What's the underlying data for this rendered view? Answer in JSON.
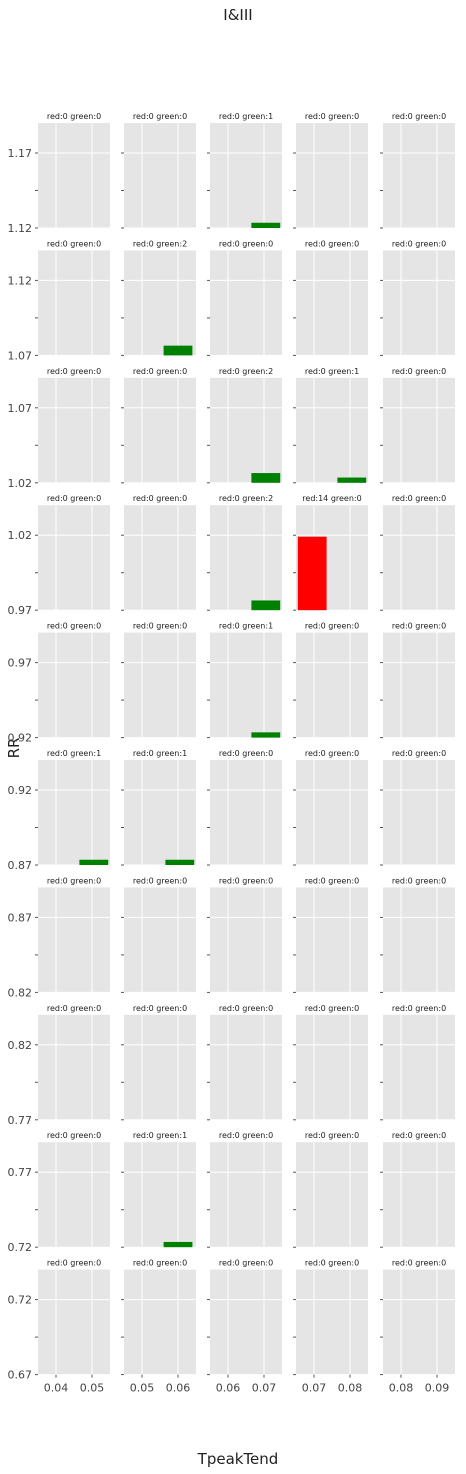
{
  "chart_data": {
    "type": "bar",
    "title": "I&III",
    "xlabel": "TpeakTend",
    "ylabel": "RR",
    "colors": {
      "red": "#ff0000",
      "green": "#008000",
      "panel_bg": "#e5e5e5",
      "grid": "#ffffff"
    },
    "grid": true,
    "columns": [
      {
        "x_range": [
          0.035,
          0.055
        ],
        "x_ticks": [
          "0.04",
          "0.05"
        ]
      },
      {
        "x_range": [
          0.045,
          0.065
        ],
        "x_ticks": [
          "0.05",
          "0.06"
        ]
      },
      {
        "x_range": [
          0.055,
          0.075
        ],
        "x_ticks": [
          "0.06",
          "0.07"
        ]
      },
      {
        "x_range": [
          0.065,
          0.085
        ],
        "x_ticks": [
          "0.07",
          "0.08"
        ]
      },
      {
        "x_range": [
          0.075,
          0.095
        ],
        "x_ticks": [
          "0.08",
          "0.09"
        ]
      }
    ],
    "rows": [
      {
        "y_range": [
          1.12,
          1.19
        ],
        "y_ticks": [
          "1.12",
          "1.17"
        ],
        "panels": [
          {
            "title": "red:0 green:0",
            "bars": []
          },
          {
            "title": "red:0 green:0",
            "bars": []
          },
          {
            "title": "red:0 green:1",
            "bars": [
              {
                "color": "green",
                "x": [
                  0.0665,
                  0.0745
                ],
                "y": [
                  1.12,
                  1.1235
                ]
              }
            ]
          },
          {
            "title": "red:0 green:0",
            "bars": []
          },
          {
            "title": "red:0 green:0",
            "bars": []
          }
        ]
      },
      {
        "y_range": [
          1.07,
          1.14
        ],
        "y_ticks": [
          "1.07",
          "1.12"
        ],
        "panels": [
          {
            "title": "red:0 green:0",
            "bars": []
          },
          {
            "title": "red:0 green:2",
            "bars": [
              {
                "color": "green",
                "x": [
                  0.056,
                  0.064
                ],
                "y": [
                  1.07,
                  1.0765
                ]
              }
            ]
          },
          {
            "title": "red:0 green:0",
            "bars": []
          },
          {
            "title": "red:0 green:0",
            "bars": []
          },
          {
            "title": "red:0 green:0",
            "bars": []
          }
        ]
      },
      {
        "y_range": [
          1.02,
          1.09
        ],
        "y_ticks": [
          "1.02",
          "1.07"
        ],
        "panels": [
          {
            "title": "red:0 green:0",
            "bars": []
          },
          {
            "title": "red:0 green:0",
            "bars": []
          },
          {
            "title": "red:0 green:2",
            "bars": [
              {
                "color": "green",
                "x": [
                  0.0665,
                  0.0745
                ],
                "y": [
                  1.02,
                  1.0265
                ]
              }
            ]
          },
          {
            "title": "red:0 green:1",
            "bars": [
              {
                "color": "green",
                "x": [
                  0.0765,
                  0.0845
                ],
                "y": [
                  1.02,
                  1.0235
                ]
              }
            ]
          },
          {
            "title": "red:0 green:0",
            "bars": []
          }
        ]
      },
      {
        "y_range": [
          0.97,
          1.04
        ],
        "y_ticks": [
          "0.97",
          "1.02"
        ],
        "panels": [
          {
            "title": "red:0 green:0",
            "bars": []
          },
          {
            "title": "red:0 green:0",
            "bars": []
          },
          {
            "title": "red:0 green:2",
            "bars": [
              {
                "color": "green",
                "x": [
                  0.0665,
                  0.0745
                ],
                "y": [
                  0.97,
                  0.9765
                ]
              }
            ]
          },
          {
            "title": "red:14 green:0",
            "bars": [
              {
                "color": "red",
                "x": [
                  0.0655,
                  0.0735
                ],
                "y": [
                  0.97,
                  1.019
                ]
              }
            ]
          },
          {
            "title": "red:0 green:0",
            "bars": []
          }
        ]
      },
      {
        "y_range": [
          0.92,
          0.99
        ],
        "y_ticks": [
          "0.92",
          "0.97"
        ],
        "panels": [
          {
            "title": "red:0 green:0",
            "bars": []
          },
          {
            "title": "red:0 green:0",
            "bars": []
          },
          {
            "title": "red:0 green:1",
            "bars": [
              {
                "color": "green",
                "x": [
                  0.0665,
                  0.0745
                ],
                "y": [
                  0.92,
                  0.9235
                ]
              }
            ]
          },
          {
            "title": "red:0 green:0",
            "bars": []
          },
          {
            "title": "red:0 green:0",
            "bars": []
          }
        ]
      },
      {
        "y_range": [
          0.87,
          0.94
        ],
        "y_ticks": [
          "0.87",
          "0.92"
        ],
        "panels": [
          {
            "title": "red:0 green:1",
            "bars": [
              {
                "color": "green",
                "x": [
                  0.0465,
                  0.0545
                ],
                "y": [
                  0.87,
                  0.8735
                ]
              }
            ]
          },
          {
            "title": "red:0 green:1",
            "bars": [
              {
                "color": "green",
                "x": [
                  0.0565,
                  0.0645
                ],
                "y": [
                  0.87,
                  0.8735
                ]
              }
            ]
          },
          {
            "title": "red:0 green:0",
            "bars": []
          },
          {
            "title": "red:0 green:0",
            "bars": []
          },
          {
            "title": "red:0 green:0",
            "bars": []
          }
        ]
      },
      {
        "y_range": [
          0.82,
          0.89
        ],
        "y_ticks": [
          "0.82",
          "0.87"
        ],
        "panels": [
          {
            "title": "red:0 green:0",
            "bars": []
          },
          {
            "title": "red:0 green:0",
            "bars": []
          },
          {
            "title": "red:0 green:0",
            "bars": []
          },
          {
            "title": "red:0 green:0",
            "bars": []
          },
          {
            "title": "red:0 green:0",
            "bars": []
          }
        ]
      },
      {
        "y_range": [
          0.77,
          0.84
        ],
        "y_ticks": [
          "0.77",
          "0.82"
        ],
        "panels": [
          {
            "title": "red:0 green:0",
            "bars": []
          },
          {
            "title": "red:0 green:0",
            "bars": []
          },
          {
            "title": "red:0 green:0",
            "bars": []
          },
          {
            "title": "red:0 green:0",
            "bars": []
          },
          {
            "title": "red:0 green:0",
            "bars": []
          }
        ]
      },
      {
        "y_range": [
          0.72,
          0.79
        ],
        "y_ticks": [
          "0.72",
          "0.77"
        ],
        "panels": [
          {
            "title": "red:0 green:0",
            "bars": []
          },
          {
            "title": "red:0 green:1",
            "bars": [
              {
                "color": "green",
                "x": [
                  0.056,
                  0.064
                ],
                "y": [
                  0.72,
                  0.7235
                ]
              }
            ]
          },
          {
            "title": "red:0 green:0",
            "bars": []
          },
          {
            "title": "red:0 green:0",
            "bars": []
          },
          {
            "title": "red:0 green:0",
            "bars": []
          }
        ]
      },
      {
        "y_range": [
          0.67,
          0.74
        ],
        "y_ticks": [
          "0.67",
          "0.72"
        ],
        "panels": [
          {
            "title": "red:0 green:0",
            "bars": []
          },
          {
            "title": "red:0 green:0",
            "bars": []
          },
          {
            "title": "red:0 green:0",
            "bars": []
          },
          {
            "title": "red:0 green:0",
            "bars": []
          },
          {
            "title": "red:0 green:0",
            "bars": []
          }
        ]
      }
    ]
  }
}
